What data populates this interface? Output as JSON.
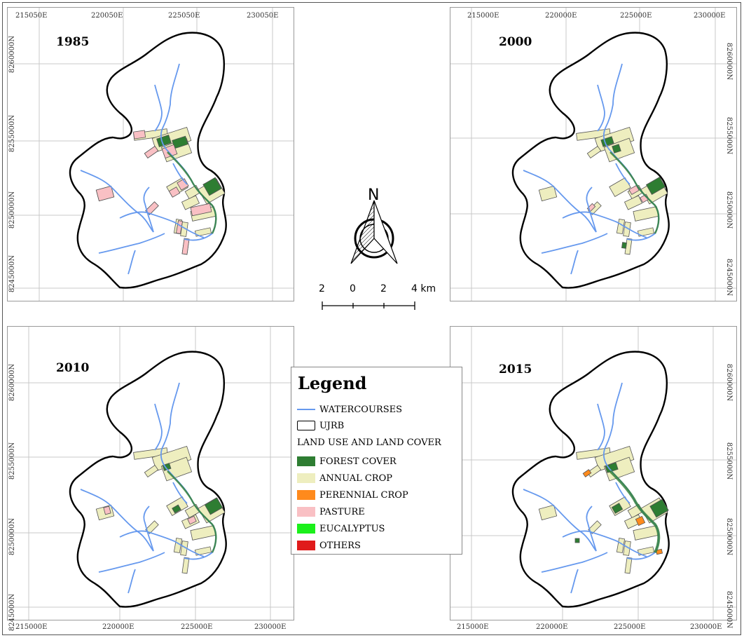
{
  "maps": [
    {
      "id": "1985",
      "year": "1985",
      "top_ticks": [
        "215050E",
        "220050E",
        "225050E",
        "230050E"
      ],
      "bottom_ticks": [],
      "left_ticks": [
        "8260000N",
        "8255000N",
        "8250000N",
        "8245000N"
      ],
      "right_ticks": []
    },
    {
      "id": "2000",
      "year": "2000",
      "top_ticks": [
        "215000E",
        "220000E",
        "225000E",
        "230000E"
      ],
      "bottom_ticks": [],
      "left_ticks": [],
      "right_ticks": [
        "8260000N",
        "8255000N",
        "8250000N",
        "8245000N"
      ]
    },
    {
      "id": "2010",
      "year": "2010",
      "top_ticks": [],
      "bottom_ticks": [
        "215000E",
        "220000E",
        "225000E",
        "230000E"
      ],
      "left_ticks": [
        "8260000N",
        "8255000N",
        "8250000N",
        "8245000N"
      ],
      "right_ticks": []
    },
    {
      "id": "2015",
      "year": "2015",
      "top_ticks": [],
      "bottom_ticks": [
        "215000E",
        "220000E",
        "225000E",
        "230000E"
      ],
      "left_ticks": [],
      "right_ticks": [
        "8260000N",
        "8255000N",
        "8250000N",
        "8245000N"
      ]
    }
  ],
  "north_arrow": {
    "letter": "N"
  },
  "scale_bar": {
    "labels": [
      "2",
      "0",
      "2",
      "4 km"
    ]
  },
  "legend": {
    "title": "Legend",
    "watercourses": "WATERCOURSES",
    "basin": "UJRB",
    "lulc_heading": "LAND USE AND LAND COVER",
    "classes": [
      {
        "label": "FOREST COVER",
        "color": "#2e7d32"
      },
      {
        "label": "ANNUAL CROP",
        "color": "#eeeebf"
      },
      {
        "label": "PERENNIAL CROP",
        "color": "#ff8a1c"
      },
      {
        "label": "PASTURE",
        "color": "#f9c0c4"
      },
      {
        "label": "EUCALYPTUS",
        "color": "#1bf01b"
      },
      {
        "label": "OTHERS",
        "color": "#e01b1b"
      }
    ],
    "watercourse_color": "#6699ee",
    "basin_outline_color": "#000000"
  }
}
